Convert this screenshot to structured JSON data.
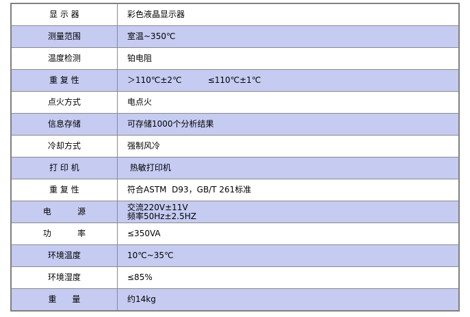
{
  "specs": [
    {
      "label": "显 示 器",
      "value": "彩色液晶显示器"
    },
    {
      "label": "测量范围",
      "value": "室温~350℃"
    },
    {
      "label": "温度检测",
      "value": "铂电阻"
    },
    {
      "label": "重 复 性",
      "value": "＞110℃±2℃          ≤110℃±1℃"
    },
    {
      "label": "点火方式",
      "value": "电点火"
    },
    {
      "label": "信息存储",
      "value": "可存储1000个分析结果"
    },
    {
      "label": "冷却方式",
      "value": "强制风冷"
    },
    {
      "label": "打 印 机",
      "value": " 热敏打印机"
    },
    {
      "label": "重 复 性",
      "value": "符合ASTM  D93，GB/T 261标准"
    },
    {
      "label": "电          源",
      "value": "交流220V±11V\n频率50Hz±2.5HZ"
    },
    {
      "label": "功          率",
      "value": "≤350VA"
    },
    {
      "label": "环境温度",
      "value": "10℃~35℃"
    },
    {
      "label": "环境湿度",
      "value": "≤85%"
    },
    {
      "label": "重      量",
      "value": "约14kg"
    }
  ],
  "colors": {
    "alt_row": "#c5cbf1",
    "border": "#7f7f7f"
  }
}
